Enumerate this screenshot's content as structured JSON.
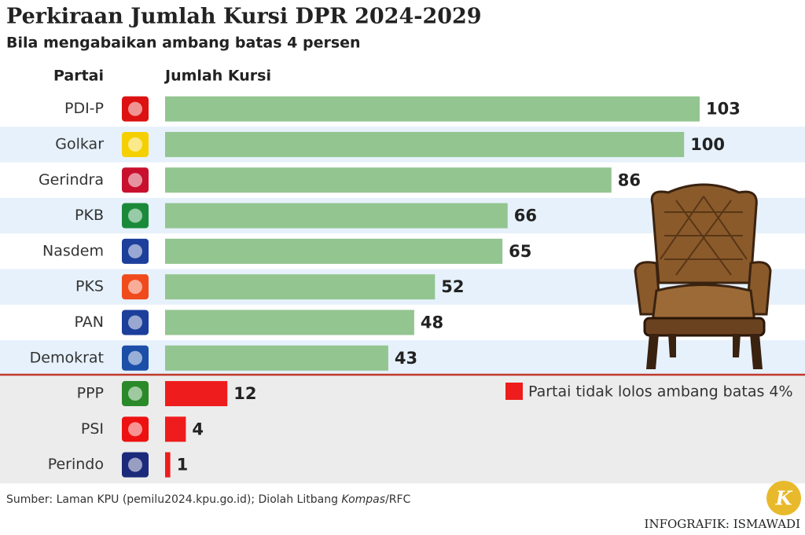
{
  "chart_data": {
    "type": "bar",
    "orientation": "horizontal",
    "title": "Perkiraan Jumlah Kursi DPR 2024-2029",
    "subtitle": "Bila mengabaikan ambang batas 4 persen",
    "category_header": "Partai",
    "value_header": "Jumlah Kursi",
    "categories": [
      "PDI-P",
      "Golkar",
      "Gerindra",
      "PKB",
      "Nasdem",
      "PKS",
      "PAN",
      "Demokrat",
      "PPP",
      "PSI",
      "Perindo"
    ],
    "values": [
      103,
      100,
      86,
      66,
      65,
      52,
      48,
      43,
      12,
      4,
      1
    ],
    "colors": [
      "#93c590",
      "#93c590",
      "#93c590",
      "#93c590",
      "#93c590",
      "#93c590",
      "#93c590",
      "#93c590",
      "#ee1c1c",
      "#ee1c1c",
      "#ee1c1c"
    ],
    "legend": {
      "label": "Partai tidak lolos ambang batas 4%",
      "color": "#ee1c1c"
    },
    "source": [
      "Sumber: Laman KPU (pemilu2024.kpu.go.id); Diolah Litbang ",
      "Kompas",
      "/RFC"
    ],
    "credit": "INFOGRAFIK: ISMAWADI",
    "logo_letter": "K"
  }
}
